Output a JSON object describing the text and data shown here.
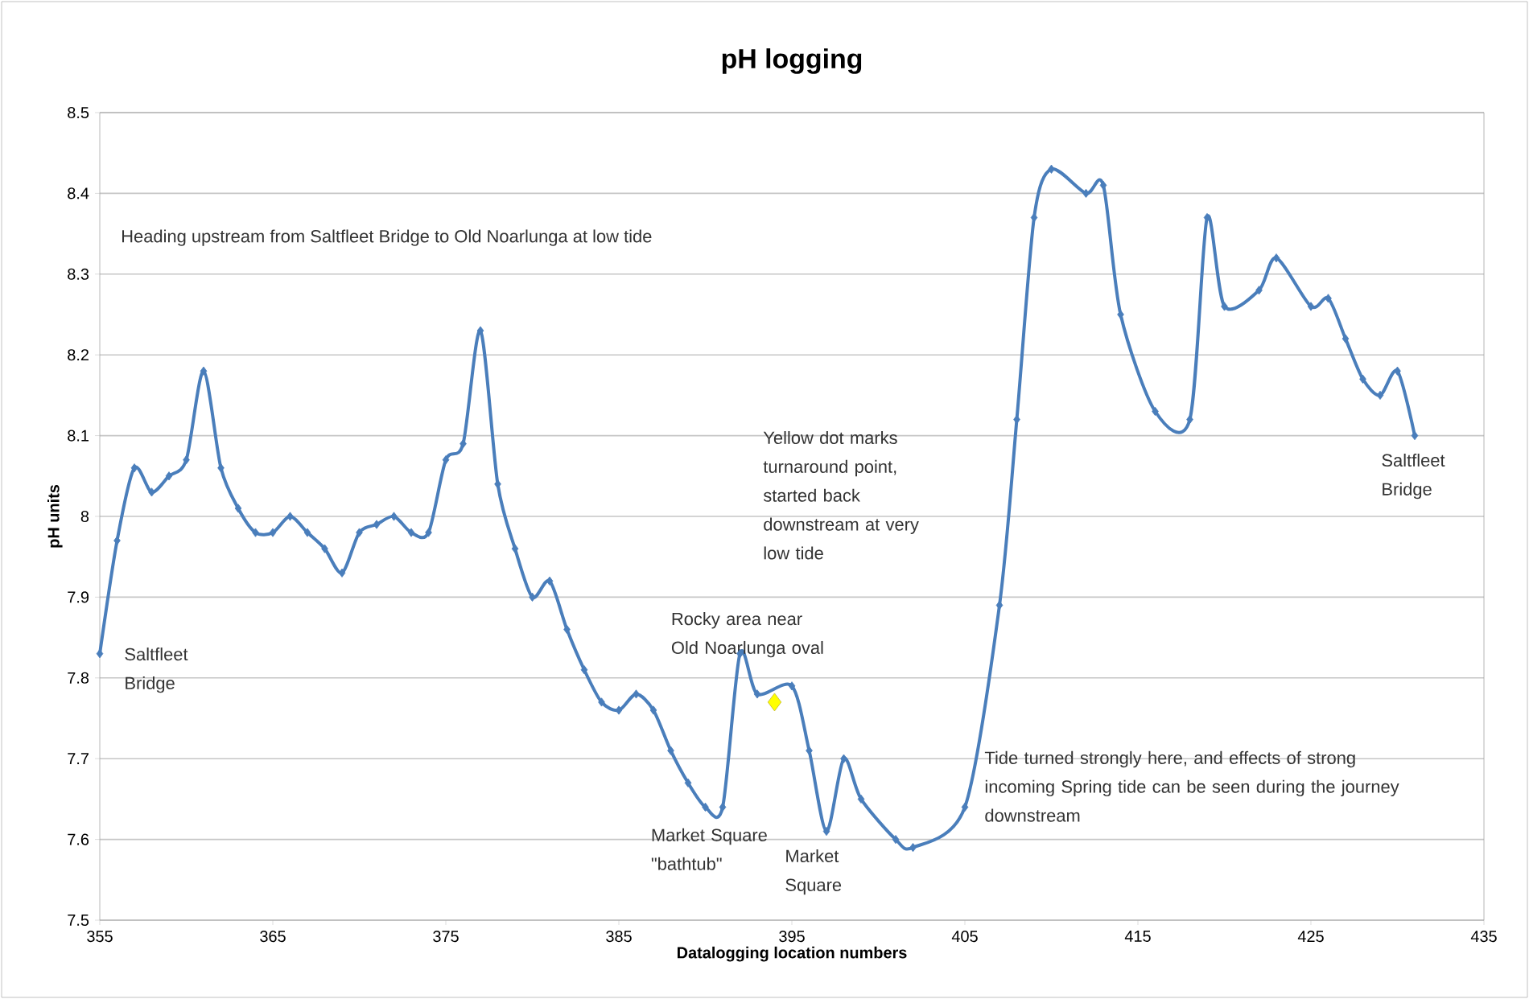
{
  "chart_data": {
    "type": "line",
    "title": "pH logging",
    "xlabel": "Datalogging location numbers",
    "ylabel": "pH units",
    "xlim": [
      355,
      435
    ],
    "xticks": [
      355,
      365,
      375,
      385,
      395,
      405,
      415,
      425,
      435
    ],
    "ylim": [
      7.5,
      8.5
    ],
    "yticks": [
      7.5,
      7.6,
      7.7,
      7.8,
      7.9,
      8,
      8.1,
      8.2,
      8.3,
      8.4,
      8.5
    ],
    "grid": "y",
    "marker": "diamond",
    "line_style": "solid",
    "series": [
      {
        "type": "line",
        "color": "#4a7ebb",
        "x": [
          355,
          356,
          357,
          358,
          359,
          360,
          361,
          362,
          363,
          364,
          365,
          366,
          367,
          368,
          369,
          370,
          371,
          372,
          373,
          374,
          375,
          376,
          377,
          378,
          379,
          380,
          381,
          382,
          383,
          384,
          385,
          386,
          387,
          388,
          389,
          390,
          391,
          392,
          393,
          395,
          396,
          397,
          398,
          399,
          401,
          402,
          405,
          407,
          408,
          409,
          410,
          412,
          413,
          414,
          416,
          418,
          419,
          420,
          422,
          423,
          425,
          426,
          427,
          428,
          429,
          430,
          431
        ],
        "values": [
          7.83,
          7.97,
          8.06,
          8.03,
          8.05,
          8.07,
          8.18,
          8.06,
          8.01,
          7.98,
          7.98,
          8.0,
          7.98,
          7.96,
          7.93,
          7.98,
          7.99,
          8.0,
          7.98,
          7.98,
          8.07,
          8.09,
          8.23,
          8.04,
          7.96,
          7.9,
          7.92,
          7.86,
          7.81,
          7.77,
          7.76,
          7.78,
          7.76,
          7.71,
          7.67,
          7.64,
          7.64,
          7.83,
          7.78,
          7.79,
          7.71,
          7.61,
          7.7,
          7.65,
          7.6,
          7.59,
          7.64,
          7.89,
          8.12,
          8.37,
          8.43,
          8.4,
          8.41,
          8.25,
          8.13,
          8.12,
          8.37,
          8.26,
          8.28,
          8.32,
          8.26,
          8.27,
          8.22,
          8.17,
          8.15,
          8.18,
          8.1
        ]
      },
      {
        "type": "scatter",
        "color": "#ffff00",
        "x": [
          394
        ],
        "values": [
          7.77
        ]
      }
    ],
    "annotations": [
      "Heading upstream from Saltfleet Bridge to Old Noarlunga at low tide",
      {
        "text": "Saltfleet Bridge",
        "x": 355,
        "y": 7.83
      },
      "Yellow dot marks turnaround point, started back downstream at very low tide",
      {
        "text": "Rocky area near Old Noarlunga oval",
        "x": 392,
        "y": 7.83
      },
      {
        "text": "Market Square \"bathtub\"",
        "x": 390,
        "y": 7.64
      },
      {
        "text": "Market Square",
        "x": 397,
        "y": 7.61
      },
      {
        "text": "Tide turned strongly here, and effects of strong incoming Spring tide can be seen during the journey downstream",
        "x": 405,
        "y": 7.64
      },
      {
        "text": "Saltfleet Bridge",
        "x": 431,
        "y": 8.1
      }
    ]
  }
}
